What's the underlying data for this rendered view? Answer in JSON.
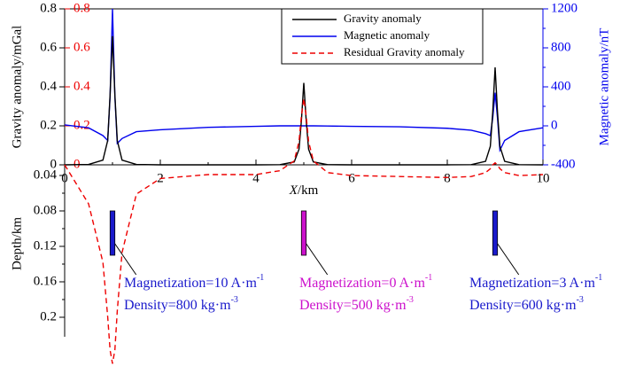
{
  "chart_data": {
    "type": "line",
    "xlabel": {
      "italic": "X",
      "rest": "/km"
    },
    "ylabel": "Gravity anomaly/mGal",
    "y2label": "Magnetic anomaly/nT",
    "xlim": [
      0,
      10
    ],
    "xticks": [
      0,
      2,
      4,
      6,
      8,
      10
    ],
    "ylim": [
      0,
      0.8
    ],
    "yticks": [
      0,
      0.2,
      0.4,
      0.6,
      0.8
    ],
    "y3lim": [
      0,
      0.8
    ],
    "y3ticks": [
      0,
      0.2,
      0.4,
      0.6,
      0.8
    ],
    "y3color": "#ee0000",
    "y2lim": [
      -400,
      1200
    ],
    "y2ticks": [
      -400,
      0,
      400,
      800,
      1200
    ],
    "y2color": "#0000ee",
    "x": [
      0,
      0.5,
      0.8,
      0.9,
      0.95,
      1,
      1.05,
      1.1,
      1.2,
      1.5,
      2,
      3,
      4,
      4.5,
      4.8,
      4.9,
      4.95,
      5,
      5.05,
      5.1,
      5.2,
      5.5,
      6,
      7,
      8,
      8.5,
      8.8,
      8.9,
      8.95,
      9,
      9.05,
      9.1,
      9.2,
      9.5,
      10
    ],
    "legend": "top-center",
    "series": [
      {
        "name": "Gravity anomaly",
        "color": "#000000",
        "axis": "y",
        "dash": false,
        "values": [
          0,
          0.002,
          0.024,
          0.125,
          0.36,
          0.66,
          0.36,
          0.125,
          0.024,
          0.002,
          0,
          0,
          0,
          0.001,
          0.015,
          0.08,
          0.227,
          0.42,
          0.227,
          0.08,
          0.015,
          0.001,
          0,
          0,
          0,
          0.001,
          0.018,
          0.095,
          0.27,
          0.5,
          0.27,
          0.095,
          0.018,
          0.001,
          0
        ]
      },
      {
        "name": "Magnetic anomaly",
        "color": "#0000ee",
        "axis": "y2",
        "dash": false,
        "values": [
          10,
          -20,
          -100,
          -150,
          300,
          1200,
          300,
          -180,
          -130,
          -60,
          -40,
          -15,
          -5,
          0,
          0,
          0,
          0,
          0,
          0,
          0,
          0,
          -2,
          -5,
          -10,
          -25,
          -45,
          -80,
          -100,
          80,
          340,
          80,
          -250,
          -150,
          -60,
          -20
        ]
      },
      {
        "name": "Residual Gravity anomaly",
        "color": "#ee0000",
        "axis": "y3",
        "dash": true,
        "values": [
          0,
          -0.2,
          -0.5,
          -0.78,
          -0.95,
          -1.02,
          -0.95,
          -0.75,
          -0.45,
          -0.15,
          -0.07,
          -0.05,
          -0.05,
          -0.03,
          0.02,
          0.12,
          0.25,
          0.34,
          0.25,
          0.12,
          0.02,
          -0.04,
          -0.055,
          -0.06,
          -0.065,
          -0.06,
          -0.04,
          -0.02,
          0,
          0.01,
          0,
          -0.02,
          -0.04,
          -0.055,
          -0.05
        ]
      }
    ],
    "depth": {
      "ylabel": "Depth/km",
      "ylim": [
        0.028,
        0.222
      ],
      "yticks": [
        0.04,
        0.08,
        0.12,
        0.16,
        0.2
      ],
      "bodies": [
        {
          "x": 1,
          "width": 0.1,
          "top": 0.08,
          "bottom": 0.13,
          "color": "#1a1acc",
          "magnetization": {
            "text": "Magnetization=10 A·m",
            "sup": "-1"
          },
          "density": {
            "text": "Density=800 kg·m",
            "sup": "-3"
          }
        },
        {
          "x": 5,
          "width": 0.1,
          "top": 0.08,
          "bottom": 0.13,
          "color": "#cc11cc",
          "magnetization": {
            "text": "Magnetization=0 A·m",
            "sup": "-1"
          },
          "density": {
            "text": "Density=500 kg·m",
            "sup": "-3"
          }
        },
        {
          "x": 9,
          "width": 0.1,
          "top": 0.08,
          "bottom": 0.13,
          "color": "#1a1acc",
          "magnetization": {
            "text": "Magnetization=3 A·m",
            "sup": "-1"
          },
          "density": {
            "text": "Density=600 kg·m",
            "sup": "-3"
          }
        }
      ]
    }
  }
}
